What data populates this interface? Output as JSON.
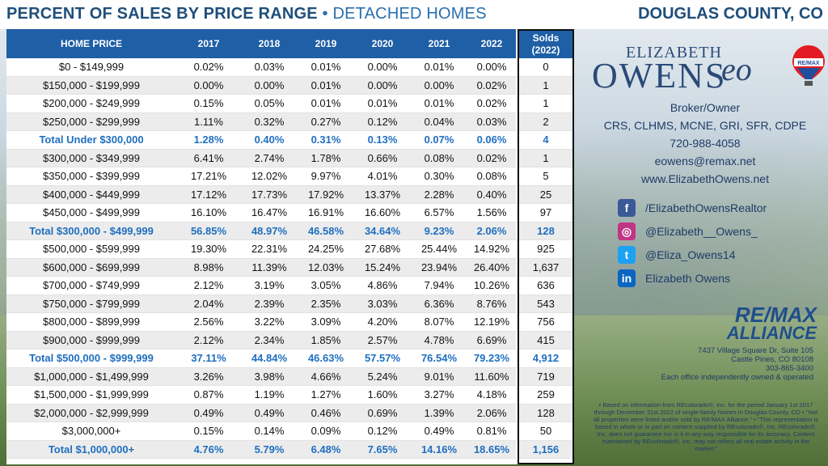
{
  "header": {
    "title": "PERCENT OF SALES BY PRICE RANGE",
    "separator": "•",
    "subtitle": "DETACHED HOMES",
    "county": "DOUGLAS COUNTY, CO"
  },
  "table": {
    "columns": [
      "HOME PRICE",
      "2017",
      "2018",
      "2019",
      "2020",
      "2021",
      "2022"
    ],
    "solds_header_line1": "Solds",
    "solds_header_line2": "(2022)",
    "rows": [
      {
        "label": "$0 - $149,999",
        "values": [
          "0.02%",
          "0.03%",
          "0.01%",
          "0.00%",
          "0.01%",
          "0.00%"
        ],
        "solds": "0",
        "total": false
      },
      {
        "label": "$150,000 - $199,999",
        "values": [
          "0.00%",
          "0.00%",
          "0.01%",
          "0.00%",
          "0.00%",
          "0.02%"
        ],
        "solds": "1",
        "total": false
      },
      {
        "label": "$200,000 - $249,999",
        "values": [
          "0.15%",
          "0.05%",
          "0.01%",
          "0.01%",
          "0.01%",
          "0.02%"
        ],
        "solds": "1",
        "total": false
      },
      {
        "label": "$250,000 - $299,999",
        "values": [
          "1.11%",
          "0.32%",
          "0.27%",
          "0.12%",
          "0.04%",
          "0.03%"
        ],
        "solds": "2",
        "total": false
      },
      {
        "label": "Total Under $300,000",
        "values": [
          "1.28%",
          "0.40%",
          "0.31%",
          "0.13%",
          "0.07%",
          "0.06%"
        ],
        "solds": "4",
        "total": true
      },
      {
        "label": "$300,000 - $349,999",
        "values": [
          "6.41%",
          "2.74%",
          "1.78%",
          "0.66%",
          "0.08%",
          "0.02%"
        ],
        "solds": "1",
        "total": false
      },
      {
        "label": "$350,000 - $399,999",
        "values": [
          "17.21%",
          "12.02%",
          "9.97%",
          "4.01%",
          "0.30%",
          "0.08%"
        ],
        "solds": "5",
        "total": false
      },
      {
        "label": "$400,000 - $449,999",
        "values": [
          "17.12%",
          "17.73%",
          "17.92%",
          "13.37%",
          "2.28%",
          "0.40%"
        ],
        "solds": "25",
        "total": false
      },
      {
        "label": "$450,000 - $499,999",
        "values": [
          "16.10%",
          "16.47%",
          "16.91%",
          "16.60%",
          "6.57%",
          "1.56%"
        ],
        "solds": "97",
        "total": false
      },
      {
        "label": "Total $300,000 - $499,999",
        "values": [
          "56.85%",
          "48.97%",
          "46.58%",
          "34.64%",
          "9.23%",
          "2.06%"
        ],
        "solds": "128",
        "total": true
      },
      {
        "label": "$500,000 - $599,999",
        "values": [
          "19.30%",
          "22.31%",
          "24.25%",
          "27.68%",
          "25.44%",
          "14.92%"
        ],
        "solds": "925",
        "total": false
      },
      {
        "label": "$600,000 - $699,999",
        "values": [
          "8.98%",
          "11.39%",
          "12.03%",
          "15.24%",
          "23.94%",
          "26.40%"
        ],
        "solds": "1,637",
        "total": false
      },
      {
        "label": "$700,000 - $749,999",
        "values": [
          "2.12%",
          "3.19%",
          "3.05%",
          "4.86%",
          "7.94%",
          "10.26%"
        ],
        "solds": "636",
        "total": false
      },
      {
        "label": "$750,000 - $799,999",
        "values": [
          "2.04%",
          "2.39%",
          "2.35%",
          "3.03%",
          "6.36%",
          "8.76%"
        ],
        "solds": "543",
        "total": false
      },
      {
        "label": "$800,000 - $899,999",
        "values": [
          "2.56%",
          "3.22%",
          "3.09%",
          "4.20%",
          "8.07%",
          "12.19%"
        ],
        "solds": "756",
        "total": false
      },
      {
        "label": "$900,000 - $999,999",
        "values": [
          "2.12%",
          "2.34%",
          "1.85%",
          "2.57%",
          "4.78%",
          "6.69%"
        ],
        "solds": "415",
        "total": false
      },
      {
        "label": "Total $500,000 - $999,999",
        "values": [
          "37.11%",
          "44.84%",
          "46.63%",
          "57.57%",
          "76.54%",
          "79.23%"
        ],
        "solds": "4,912",
        "total": true
      },
      {
        "label": "$1,000,000 - $1,499,999",
        "values": [
          "3.26%",
          "3.98%",
          "4.66%",
          "5.24%",
          "9.01%",
          "11.60%"
        ],
        "solds": "719",
        "total": false
      },
      {
        "label": "$1,500,000 - $1,999,999",
        "values": [
          "0.87%",
          "1.19%",
          "1.27%",
          "1.60%",
          "3.27%",
          "4.18%"
        ],
        "solds": "259",
        "total": false
      },
      {
        "label": "$2,000,000 - $2,999,999",
        "values": [
          "0.49%",
          "0.49%",
          "0.46%",
          "0.69%",
          "1.39%",
          "2.06%"
        ],
        "solds": "128",
        "total": false
      },
      {
        "label": "$3,000,000+",
        "values": [
          "0.15%",
          "0.14%",
          "0.09%",
          "0.12%",
          "0.49%",
          "0.81%"
        ],
        "solds": "50",
        "total": false
      },
      {
        "label": "Total $1,000,000+",
        "values": [
          "4.76%",
          "5.79%",
          "6.48%",
          "7.65%",
          "14.16%",
          "18.65%"
        ],
        "solds": "1,156",
        "total": true
      }
    ]
  },
  "agent": {
    "logo_first": "ELIZABETH",
    "logo_last": "OWENS",
    "logo_monogram": "eo",
    "title": "Broker/Owner",
    "designations": "CRS, CLHMS, MCNE, GRI, SFR, CDPE",
    "phone": "720-988-4058",
    "email": "eowens@remax.net",
    "website": "www.ElizabethOwens.net",
    "balloon_text": "RE/MAX"
  },
  "social": [
    {
      "icon": "facebook-icon",
      "glyph": "f",
      "color": "#3b5998",
      "label": "/ElizabethOwensRealtor"
    },
    {
      "icon": "instagram-icon",
      "glyph": "◎",
      "color": "#c13584",
      "label": "@Elizabeth__Owens_"
    },
    {
      "icon": "twitter-icon",
      "glyph": "t",
      "color": "#1da1f2",
      "label": "@Eliza_Owens14"
    },
    {
      "icon": "linkedin-icon",
      "glyph": "in",
      "color": "#0a66c2",
      "label": "Elizabeth Owens"
    }
  ],
  "office": {
    "brand_line1": "RE/MAX",
    "brand_line2": "ALLIANCE",
    "address1": "7437 Village Square Dr, Suite 105",
    "address2": "Castle Pines, CO 80108",
    "phone": "303-865-3400",
    "note": "Each office independently owned & operated"
  },
  "disclaimer": "• Based on information from REcolorado®, Inc. for the period January 1st 2017 through December 31st 2022 of single-family homes in Douglas County, CO • \"Not all properties were listed and/or sold by RE/MAX Alliance.\" • \"This representation is based in whole or in part on content supplied by REcolorado®, Inc. REcolorado®, Inc. does not guarantee nor is it in any way responsible for its accuracy. Content maintained by REcolorado®, Inc. may not reflect all real estate activity in the market.\""
}
